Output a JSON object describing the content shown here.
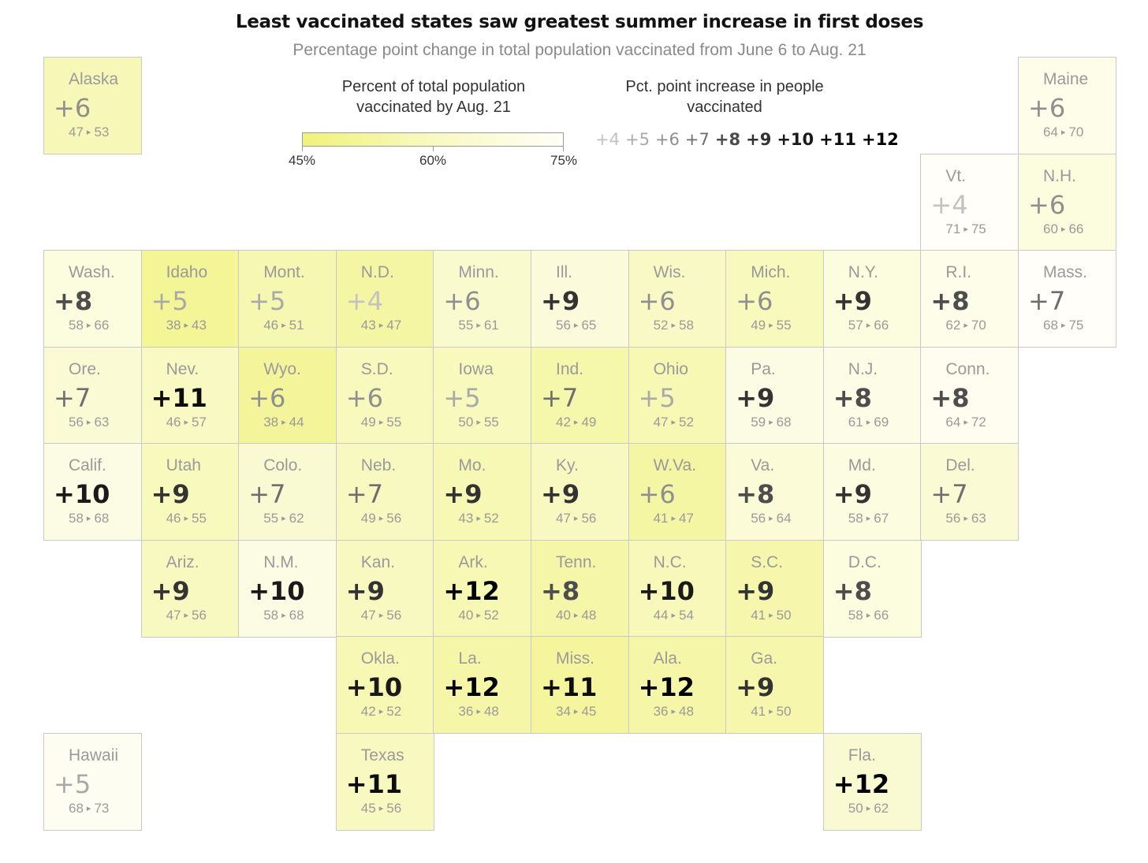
{
  "title": "Least vaccinated states saw greatest summer increase in first doses",
  "subtitle": "Percentage point change in total population vaccinated from June 6 to Aug. 21",
  "legend": {
    "color_title_line1": "Percent of total population",
    "color_title_line2": "vaccinated by Aug. 21",
    "color_ticks": [
      "45%",
      "60%",
      "75%"
    ],
    "color_scale": {
      "min_color": "#f0f27a",
      "mid_color": "#f8f9c2",
      "max_color": "#fffef8"
    },
    "increase_title_line1": "Pct. point increase in people",
    "increase_title_line2": "vaccinated",
    "increase_items": [
      "+4",
      "+5",
      "+6",
      "+7",
      "+8",
      "+9",
      "+10",
      "+11",
      "+12"
    ]
  },
  "arrow_glyph": "▸",
  "states": [
    {
      "abbr": "Alaska",
      "inc": "+6",
      "from": 47,
      "to": 53,
      "row": 0,
      "col": 0
    },
    {
      "abbr": "Maine",
      "inc": "+6",
      "from": 64,
      "to": 70,
      "row": 0,
      "col": 10
    },
    {
      "abbr": "Vt.",
      "inc": "+4",
      "from": 71,
      "to": 75,
      "row": 1,
      "col": 9
    },
    {
      "abbr": "N.H.",
      "inc": "+6",
      "from": 60,
      "to": 66,
      "row": 1,
      "col": 10
    },
    {
      "abbr": "Wash.",
      "inc": "+8",
      "from": 58,
      "to": 66,
      "row": 2,
      "col": 0
    },
    {
      "abbr": "Idaho",
      "inc": "+5",
      "from": 38,
      "to": 43,
      "row": 2,
      "col": 1
    },
    {
      "abbr": "Mont.",
      "inc": "+5",
      "from": 46,
      "to": 51,
      "row": 2,
      "col": 2
    },
    {
      "abbr": "N.D.",
      "inc": "+4",
      "from": 43,
      "to": 47,
      "row": 2,
      "col": 3
    },
    {
      "abbr": "Minn.",
      "inc": "+6",
      "from": 55,
      "to": 61,
      "row": 2,
      "col": 4
    },
    {
      "abbr": "Ill.",
      "inc": "+9",
      "from": 56,
      "to": 65,
      "row": 2,
      "col": 5
    },
    {
      "abbr": "Wis.",
      "inc": "+6",
      "from": 52,
      "to": 58,
      "row": 2,
      "col": 6
    },
    {
      "abbr": "Mich.",
      "inc": "+6",
      "from": 49,
      "to": 55,
      "row": 2,
      "col": 7
    },
    {
      "abbr": "N.Y.",
      "inc": "+9",
      "from": 57,
      "to": 66,
      "row": 2,
      "col": 8
    },
    {
      "abbr": "R.I.",
      "inc": "+8",
      "from": 62,
      "to": 70,
      "row": 2,
      "col": 9
    },
    {
      "abbr": "Mass.",
      "inc": "+7",
      "from": 68,
      "to": 75,
      "row": 2,
      "col": 10
    },
    {
      "abbr": "Ore.",
      "inc": "+7",
      "from": 56,
      "to": 63,
      "row": 3,
      "col": 0
    },
    {
      "abbr": "Nev.",
      "inc": "+11",
      "from": 46,
      "to": 57,
      "row": 3,
      "col": 1
    },
    {
      "abbr": "Wyo.",
      "inc": "+6",
      "from": 38,
      "to": 44,
      "row": 3,
      "col": 2
    },
    {
      "abbr": "S.D.",
      "inc": "+6",
      "from": 49,
      "to": 55,
      "row": 3,
      "col": 3
    },
    {
      "abbr": "Iowa",
      "inc": "+5",
      "from": 50,
      "to": 55,
      "row": 3,
      "col": 4
    },
    {
      "abbr": "Ind.",
      "inc": "+7",
      "from": 42,
      "to": 49,
      "row": 3,
      "col": 5
    },
    {
      "abbr": "Ohio",
      "inc": "+5",
      "from": 47,
      "to": 52,
      "row": 3,
      "col": 6
    },
    {
      "abbr": "Pa.",
      "inc": "+9",
      "from": 59,
      "to": 68,
      "row": 3,
      "col": 7
    },
    {
      "abbr": "N.J.",
      "inc": "+8",
      "from": 61,
      "to": 69,
      "row": 3,
      "col": 8
    },
    {
      "abbr": "Conn.",
      "inc": "+8",
      "from": 64,
      "to": 72,
      "row": 3,
      "col": 9
    },
    {
      "abbr": "Calif.",
      "inc": "+10",
      "from": 58,
      "to": 68,
      "row": 4,
      "col": 0
    },
    {
      "abbr": "Utah",
      "inc": "+9",
      "from": 46,
      "to": 55,
      "row": 4,
      "col": 1
    },
    {
      "abbr": "Colo.",
      "inc": "+7",
      "from": 55,
      "to": 62,
      "row": 4,
      "col": 2
    },
    {
      "abbr": "Neb.",
      "inc": "+7",
      "from": 49,
      "to": 56,
      "row": 4,
      "col": 3
    },
    {
      "abbr": "Mo.",
      "inc": "+9",
      "from": 43,
      "to": 52,
      "row": 4,
      "col": 4
    },
    {
      "abbr": "Ky.",
      "inc": "+9",
      "from": 47,
      "to": 56,
      "row": 4,
      "col": 5
    },
    {
      "abbr": "W.Va.",
      "inc": "+6",
      "from": 41,
      "to": 47,
      "row": 4,
      "col": 6
    },
    {
      "abbr": "Va.",
      "inc": "+8",
      "from": 56,
      "to": 64,
      "row": 4,
      "col": 7
    },
    {
      "abbr": "Md.",
      "inc": "+9",
      "from": 58,
      "to": 67,
      "row": 4,
      "col": 8
    },
    {
      "abbr": "Del.",
      "inc": "+7",
      "from": 56,
      "to": 63,
      "row": 4,
      "col": 9
    },
    {
      "abbr": "Ariz.",
      "inc": "+9",
      "from": 47,
      "to": 56,
      "row": 5,
      "col": 1
    },
    {
      "abbr": "N.M.",
      "inc": "+10",
      "from": 58,
      "to": 68,
      "row": 5,
      "col": 2
    },
    {
      "abbr": "Kan.",
      "inc": "+9",
      "from": 47,
      "to": 56,
      "row": 5,
      "col": 3
    },
    {
      "abbr": "Ark.",
      "inc": "+12",
      "from": 40,
      "to": 52,
      "row": 5,
      "col": 4
    },
    {
      "abbr": "Tenn.",
      "inc": "+8",
      "from": 40,
      "to": 48,
      "row": 5,
      "col": 5
    },
    {
      "abbr": "N.C.",
      "inc": "+10",
      "from": 44,
      "to": 54,
      "row": 5,
      "col": 6
    },
    {
      "abbr": "S.C.",
      "inc": "+9",
      "from": 41,
      "to": 50,
      "row": 5,
      "col": 7
    },
    {
      "abbr": "D.C.",
      "inc": "+8",
      "from": 58,
      "to": 66,
      "row": 5,
      "col": 8
    },
    {
      "abbr": "Okla.",
      "inc": "+10",
      "from": 42,
      "to": 52,
      "row": 6,
      "col": 3
    },
    {
      "abbr": "La.",
      "inc": "+12",
      "from": 36,
      "to": 48,
      "row": 6,
      "col": 4
    },
    {
      "abbr": "Miss.",
      "inc": "+11",
      "from": 34,
      "to": 45,
      "row": 6,
      "col": 5
    },
    {
      "abbr": "Ala.",
      "inc": "+12",
      "from": 36,
      "to": 48,
      "row": 6,
      "col": 6
    },
    {
      "abbr": "Ga.",
      "inc": "+9",
      "from": 41,
      "to": 50,
      "row": 6,
      "col": 7
    },
    {
      "abbr": "Hawaii",
      "inc": "+5",
      "from": 68,
      "to": 73,
      "row": 7,
      "col": 0
    },
    {
      "abbr": "Texas",
      "inc": "+11",
      "from": 45,
      "to": 56,
      "row": 7,
      "col": 3
    },
    {
      "abbr": "Fla.",
      "inc": "+12",
      "from": 50,
      "to": 62,
      "row": 7,
      "col": 8
    }
  ]
}
